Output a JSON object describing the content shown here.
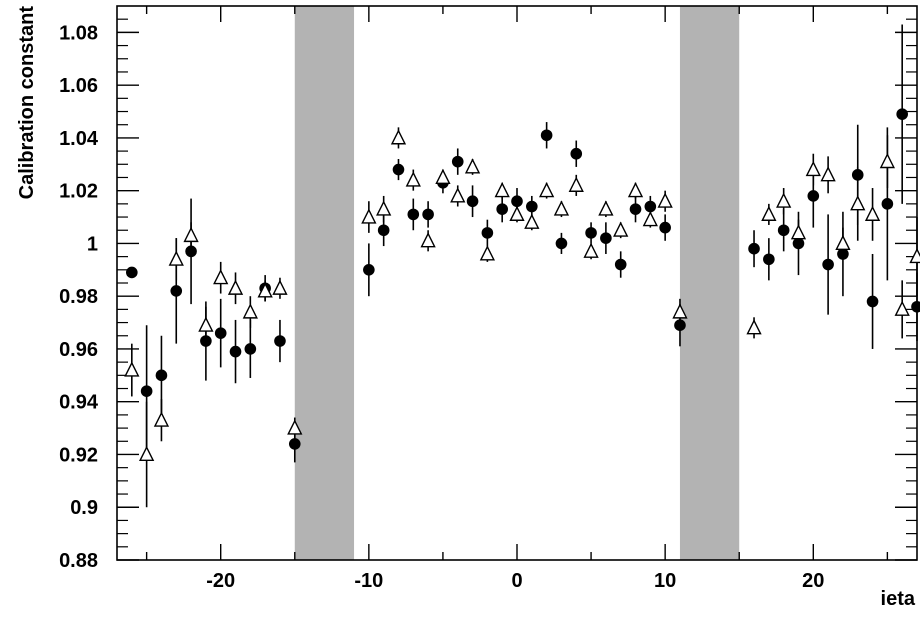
{
  "chart_data": {
    "type": "scatter",
    "title": "",
    "xlabel": "ieta",
    "ylabel": "Calibration constant",
    "xlim": [
      -27,
      27
    ],
    "ylim": [
      0.88,
      1.09
    ],
    "xticks": [
      -20,
      -10,
      0,
      10,
      20
    ],
    "yticks": [
      0.88,
      0.9,
      0.92,
      0.94,
      0.96,
      0.98,
      1,
      1.02,
      1.04,
      1.06,
      1.08
    ],
    "ytick_labels": [
      "0.88",
      "0.9",
      "0.92",
      "0.94",
      "0.96",
      "0.98",
      "1",
      "1.02",
      "1.04",
      "1.06",
      "1.08"
    ],
    "grid": false,
    "legend": "none",
    "excluded_bands": [
      {
        "x_start": -15,
        "x_end": -11,
        "color": "#b3b3b3"
      },
      {
        "x_start": 11,
        "x_end": 15,
        "color": "#b3b3b3"
      }
    ],
    "series": [
      {
        "marker": "filled-circle",
        "color": "#000000",
        "points": [
          {
            "x": -26,
            "y": 0.989,
            "err": 0.0
          },
          {
            "x": -25,
            "y": 0.944,
            "err": 0.025
          },
          {
            "x": -24,
            "y": 0.95,
            "err": 0.015
          },
          {
            "x": -23,
            "y": 0.982,
            "err": 0.02
          },
          {
            "x": -22,
            "y": 0.997,
            "err": 0.02
          },
          {
            "x": -21,
            "y": 0.963,
            "err": 0.015
          },
          {
            "x": -20,
            "y": 0.966,
            "err": 0.013
          },
          {
            "x": -19,
            "y": 0.959,
            "err": 0.012
          },
          {
            "x": -18,
            "y": 0.96,
            "err": 0.011
          },
          {
            "x": -17,
            "y": 0.983,
            "err": 0.005
          },
          {
            "x": -16,
            "y": 0.963,
            "err": 0.008
          },
          {
            "x": -15,
            "y": 0.924,
            "err": 0.007
          },
          {
            "x": -10,
            "y": 0.99,
            "err": 0.01
          },
          {
            "x": -9,
            "y": 1.005,
            "err": 0.006
          },
          {
            "x": -8,
            "y": 1.028,
            "err": 0.004
          },
          {
            "x": -7,
            "y": 1.011,
            "err": 0.006
          },
          {
            "x": -6,
            "y": 1.011,
            "err": 0.005
          },
          {
            "x": -5,
            "y": 1.023,
            "err": 0.004
          },
          {
            "x": -4,
            "y": 1.031,
            "err": 0.005
          },
          {
            "x": -3,
            "y": 1.016,
            "err": 0.006
          },
          {
            "x": -2,
            "y": 1.004,
            "err": 0.005
          },
          {
            "x": -1,
            "y": 1.013,
            "err": 0.005
          },
          {
            "x": 0,
            "y": 1.016,
            "err": 0.005
          },
          {
            "x": 1,
            "y": 1.014,
            "err": 0.004
          },
          {
            "x": 2,
            "y": 1.041,
            "err": 0.005
          },
          {
            "x": 3,
            "y": 1.0,
            "err": 0.004
          },
          {
            "x": 4,
            "y": 1.034,
            "err": 0.005
          },
          {
            "x": 5,
            "y": 1.004,
            "err": 0.004
          },
          {
            "x": 6,
            "y": 1.002,
            "err": 0.006
          },
          {
            "x": 7,
            "y": 0.992,
            "err": 0.005
          },
          {
            "x": 8,
            "y": 1.013,
            "err": 0.005
          },
          {
            "x": 9,
            "y": 1.014,
            "err": 0.004
          },
          {
            "x": 10,
            "y": 1.006,
            "err": 0.005
          },
          {
            "x": 11,
            "y": 0.969,
            "err": 0.008
          },
          {
            "x": 16,
            "y": 0.998,
            "err": 0.007
          },
          {
            "x": 17,
            "y": 0.994,
            "err": 0.008
          },
          {
            "x": 18,
            "y": 1.005,
            "err": 0.008
          },
          {
            "x": 19,
            "y": 1.0,
            "err": 0.012
          },
          {
            "x": 20,
            "y": 1.018,
            "err": 0.012
          },
          {
            "x": 21,
            "y": 0.992,
            "err": 0.019
          },
          {
            "x": 22,
            "y": 0.996,
            "err": 0.016
          },
          {
            "x": 23,
            "y": 1.026,
            "err": 0.019
          },
          {
            "x": 24,
            "y": 0.978,
            "err": 0.018
          },
          {
            "x": 25,
            "y": 1.015,
            "err": 0.029
          },
          {
            "x": 26,
            "y": 1.049,
            "err": 0.034
          },
          {
            "x": 27,
            "y": 0.976,
            "err": 0.013
          }
        ]
      },
      {
        "marker": "open-triangle",
        "color": "#000000",
        "points": [
          {
            "x": -26,
            "y": 0.952,
            "err": 0.01
          },
          {
            "x": -25,
            "y": 0.92,
            "err": 0.02
          },
          {
            "x": -24,
            "y": 0.933,
            "err": 0.008
          },
          {
            "x": -23,
            "y": 0.994,
            "err": 0.008
          },
          {
            "x": -22,
            "y": 1.003,
            "err": 0.005
          },
          {
            "x": -21,
            "y": 0.969,
            "err": 0.007
          },
          {
            "x": -20,
            "y": 0.987,
            "err": 0.006
          },
          {
            "x": -19,
            "y": 0.983,
            "err": 0.006
          },
          {
            "x": -18,
            "y": 0.974,
            "err": 0.006
          },
          {
            "x": -17,
            "y": 0.982,
            "err": 0.004
          },
          {
            "x": -16,
            "y": 0.983,
            "err": 0.004
          },
          {
            "x": -15,
            "y": 0.93,
            "err": 0.004
          },
          {
            "x": -10,
            "y": 1.01,
            "err": 0.006
          },
          {
            "x": -9,
            "y": 1.013,
            "err": 0.005
          },
          {
            "x": -8,
            "y": 1.04,
            "err": 0.004
          },
          {
            "x": -7,
            "y": 1.024,
            "err": 0.004
          },
          {
            "x": -6,
            "y": 1.001,
            "err": 0.004
          },
          {
            "x": -5,
            "y": 1.025,
            "err": 0.003
          },
          {
            "x": -4,
            "y": 1.018,
            "err": 0.004
          },
          {
            "x": -3,
            "y": 1.029,
            "err": 0.003
          },
          {
            "x": -2,
            "y": 0.996,
            "err": 0.003
          },
          {
            "x": -1,
            "y": 1.02,
            "err": 0.003
          },
          {
            "x": 0,
            "y": 1.011,
            "err": 0.003
          },
          {
            "x": 1,
            "y": 1.008,
            "err": 0.003
          },
          {
            "x": 2,
            "y": 1.02,
            "err": 0.003
          },
          {
            "x": 3,
            "y": 1.013,
            "err": 0.003
          },
          {
            "x": 4,
            "y": 1.022,
            "err": 0.004
          },
          {
            "x": 5,
            "y": 0.997,
            "err": 0.003
          },
          {
            "x": 6,
            "y": 1.013,
            "err": 0.003
          },
          {
            "x": 7,
            "y": 1.005,
            "err": 0.003
          },
          {
            "x": 8,
            "y": 1.02,
            "err": 0.003
          },
          {
            "x": 9,
            "y": 1.009,
            "err": 0.003
          },
          {
            "x": 10,
            "y": 1.016,
            "err": 0.004
          },
          {
            "x": 11,
            "y": 0.974,
            "err": 0.005
          },
          {
            "x": 16,
            "y": 0.968,
            "err": 0.004
          },
          {
            "x": 17,
            "y": 1.011,
            "err": 0.004
          },
          {
            "x": 18,
            "y": 1.016,
            "err": 0.005
          },
          {
            "x": 19,
            "y": 1.004,
            "err": 0.005
          },
          {
            "x": 20,
            "y": 1.028,
            "err": 0.006
          },
          {
            "x": 21,
            "y": 1.026,
            "err": 0.007
          },
          {
            "x": 22,
            "y": 1.0,
            "err": 0.006
          },
          {
            "x": 23,
            "y": 1.015,
            "err": 0.014
          },
          {
            "x": 24,
            "y": 1.011,
            "err": 0.01
          },
          {
            "x": 25,
            "y": 1.031,
            "err": 0.01
          },
          {
            "x": 26,
            "y": 0.975,
            "err": 0.011
          },
          {
            "x": 27,
            "y": 0.995,
            "err": 0.015
          }
        ]
      }
    ]
  }
}
